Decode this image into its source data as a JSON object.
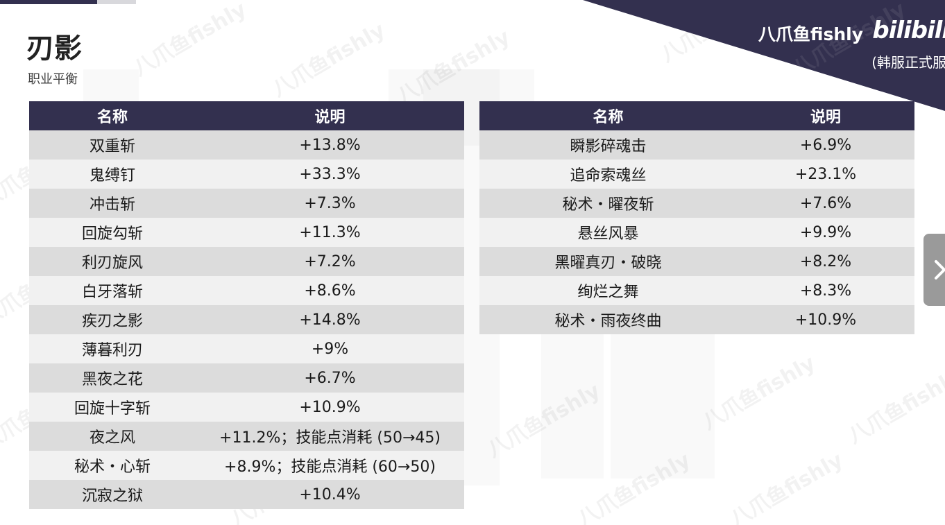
{
  "header": {
    "title": "刃影",
    "subtitle": "职业平衡"
  },
  "brand": {
    "author": "八爪鱼fishly",
    "logo": "bilibili",
    "server": "(韩服正式服"
  },
  "colors": {
    "header_bg": "#33304f",
    "row_dark": "#dcdcdc",
    "row_light": "#f1f1f1",
    "next_button": "#9a9a9a"
  },
  "watermark": "八爪鱼fishly",
  "next_button": {
    "icon": "chevron-right-icon"
  },
  "table_left": {
    "columns": [
      "名称",
      "说明"
    ],
    "rows": [
      {
        "name": "双重斩",
        "desc": "+13.8%"
      },
      {
        "name": "鬼缚钉",
        "desc": "+33.3%"
      },
      {
        "name": "冲击斩",
        "desc": "+7.3%"
      },
      {
        "name": "回旋勾斩",
        "desc": "+11.3%"
      },
      {
        "name": "利刃旋风",
        "desc": "+7.2%"
      },
      {
        "name": "白牙落斩",
        "desc": "+8.6%"
      },
      {
        "name": "疾刃之影",
        "desc": "+14.8%"
      },
      {
        "name": "薄暮利刃",
        "desc": "+9%"
      },
      {
        "name": "黑夜之花",
        "desc": "+6.7%"
      },
      {
        "name": "回旋十字斩",
        "desc": "+10.9%"
      },
      {
        "name": "夜之风",
        "desc": "+11.2%；技能点消耗 (50→45)"
      },
      {
        "name": "秘术・心斩",
        "desc": "+8.9%；技能点消耗 (60→50)"
      },
      {
        "name": "沉寂之狱",
        "desc": "+10.4%"
      }
    ]
  },
  "table_right": {
    "columns": [
      "名称",
      "说明"
    ],
    "rows": [
      {
        "name": "瞬影碎魂击",
        "desc": "+6.9%"
      },
      {
        "name": "追命索魂丝",
        "desc": "+23.1%"
      },
      {
        "name": "秘术・曜夜斩",
        "desc": "+7.6%"
      },
      {
        "name": "悬丝风暴",
        "desc": "+9.9%"
      },
      {
        "name": "黑曜真刃・破晓",
        "desc": "+8.2%"
      },
      {
        "name": "绚烂之舞",
        "desc": "+8.3%"
      },
      {
        "name": "秘术・雨夜终曲",
        "desc": "+10.9%"
      }
    ]
  }
}
